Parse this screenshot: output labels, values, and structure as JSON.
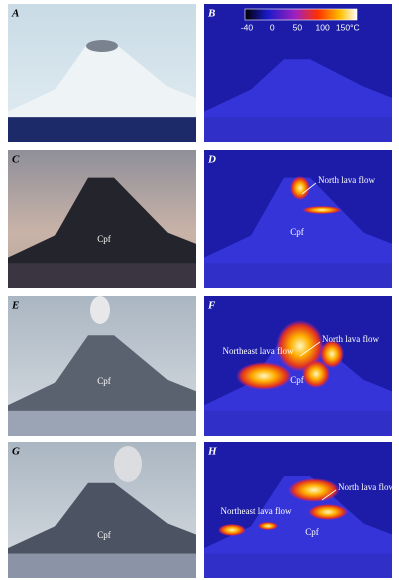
{
  "panels": [
    {
      "letter": "A"
    },
    {
      "letter": "B",
      "colorbar": [
        "-40",
        "0",
        "50",
        "100",
        "150°C"
      ]
    },
    {
      "letter": "C",
      "labels": [
        "Cpf"
      ]
    },
    {
      "letter": "D",
      "labels": [
        "North lava flow",
        "Cpf"
      ]
    },
    {
      "letter": "E",
      "labels": [
        "Cpf"
      ]
    },
    {
      "letter": "F",
      "labels": [
        "North lava flow",
        "Northeast lava flow",
        "Cpf"
      ]
    },
    {
      "letter": "G",
      "labels": [
        "Cpf"
      ]
    },
    {
      "letter": "H",
      "labels": [
        "North lava flow",
        "Northeast lava flow",
        "Cpf"
      ]
    }
  ]
}
